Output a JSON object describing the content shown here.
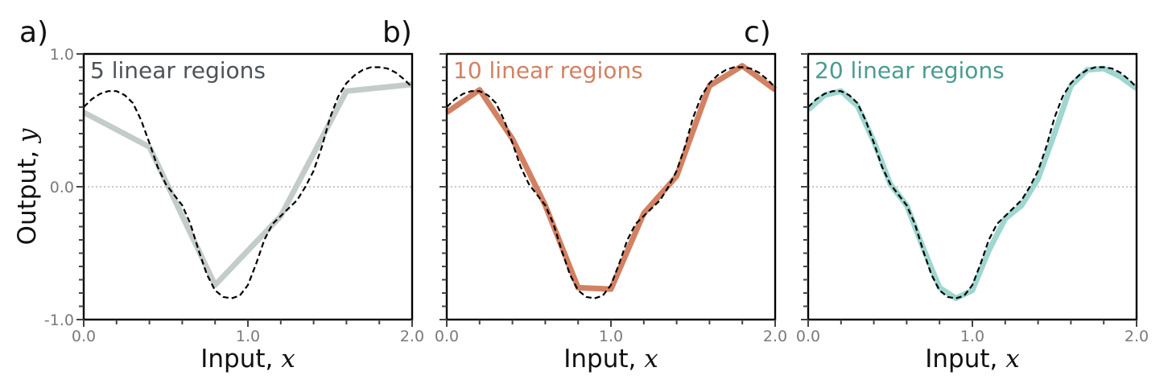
{
  "chart_data": [
    {
      "type": "line",
      "panel_label": "a)",
      "annotation": "5 linear regions",
      "annotation_color": "#4d5358",
      "fit_color": "#c4ccca",
      "xlabel": "Input, ",
      "xlabel_var": "x",
      "ylabel": "Output, ",
      "ylabel_var": "y",
      "xlim": [
        0,
        2
      ],
      "ylim": [
        -1,
        1
      ],
      "xticks": [
        {
          "value": 0,
          "label": "0.0"
        },
        {
          "value": 1,
          "label": "1.0"
        },
        {
          "value": 2,
          "label": "2.0"
        }
      ],
      "yticks": [
        {
          "value": 1,
          "label": "1.0"
        },
        {
          "value": 0,
          "label": "0.0"
        },
        {
          "value": -1,
          "label": "-1.0"
        }
      ],
      "fit": {
        "x": [
          0,
          0.4,
          0.8,
          1.2,
          1.6,
          2.0
        ],
        "y": [
          0.56,
          0.3,
          -0.74,
          -0.22,
          0.72,
          0.77
        ]
      }
    },
    {
      "type": "line",
      "panel_label": "b)",
      "annotation": "10 linear regions",
      "annotation_color": "#d28163",
      "fit_color": "#d28163",
      "xlabel": "Input, ",
      "xlabel_var": "x",
      "xlim": [
        0,
        2
      ],
      "ylim": [
        -1,
        1
      ],
      "xticks": [
        {
          "value": 0,
          "label": "0.0"
        },
        {
          "value": 1,
          "label": "1.0"
        },
        {
          "value": 2,
          "label": "2.0"
        }
      ],
      "yticks": [
        {
          "value": 1,
          "label": ""
        },
        {
          "value": 0,
          "label": ""
        },
        {
          "value": -1,
          "label": ""
        }
      ],
      "fit": {
        "x": [
          0,
          0.2,
          0.4,
          0.6,
          0.8,
          1.0,
          1.2,
          1.4,
          1.6,
          1.8,
          2.0
        ],
        "y": [
          0.56,
          0.73,
          0.36,
          -0.14,
          -0.76,
          -0.77,
          -0.2,
          0.08,
          0.76,
          0.91,
          0.73
        ]
      }
    },
    {
      "type": "line",
      "panel_label": "c)",
      "annotation": "20 linear regions",
      "annotation_color": "#4a9b92",
      "fit_color": "#9fd6d0",
      "xlabel": "Input, ",
      "xlabel_var": "x",
      "xlim": [
        0,
        2
      ],
      "ylim": [
        -1,
        1
      ],
      "xticks": [
        {
          "value": 0,
          "label": "0.0"
        },
        {
          "value": 1,
          "label": "1.0"
        },
        {
          "value": 2,
          "label": "2.0"
        }
      ],
      "yticks": [
        {
          "value": 1,
          "label": ""
        },
        {
          "value": 0,
          "label": ""
        },
        {
          "value": -1,
          "label": ""
        }
      ],
      "fit": {
        "x": [
          0,
          0.1,
          0.2,
          0.3,
          0.4,
          0.5,
          0.6,
          0.7,
          0.8,
          0.9,
          1.0,
          1.1,
          1.2,
          1.3,
          1.4,
          1.5,
          1.6,
          1.7,
          1.8,
          1.9,
          2.0
        ],
        "y": [
          0.58,
          0.69,
          0.72,
          0.61,
          0.34,
          0.02,
          -0.14,
          -0.46,
          -0.76,
          -0.84,
          -0.78,
          -0.48,
          -0.24,
          -0.14,
          0.06,
          0.4,
          0.76,
          0.88,
          0.89,
          0.83,
          0.74
        ]
      }
    }
  ],
  "true_function": {
    "x": [
      0,
      0.05,
      0.1,
      0.15,
      0.2,
      0.25,
      0.3,
      0.35,
      0.4,
      0.45,
      0.5,
      0.55,
      0.6,
      0.65,
      0.7,
      0.75,
      0.8,
      0.85,
      0.9,
      0.95,
      1.0,
      1.05,
      1.1,
      1.15,
      1.2,
      1.25,
      1.3,
      1.35,
      1.4,
      1.45,
      1.5,
      1.55,
      1.6,
      1.65,
      1.7,
      1.75,
      1.8,
      1.85,
      1.9,
      1.95,
      2.0
    ],
    "y": [
      0.6,
      0.66,
      0.7,
      0.72,
      0.72,
      0.69,
      0.63,
      0.5,
      0.33,
      0.15,
      0.02,
      -0.06,
      -0.14,
      -0.28,
      -0.48,
      -0.66,
      -0.78,
      -0.83,
      -0.84,
      -0.82,
      -0.74,
      -0.58,
      -0.4,
      -0.28,
      -0.22,
      -0.16,
      -0.1,
      0.0,
      0.12,
      0.3,
      0.52,
      0.68,
      0.78,
      0.84,
      0.88,
      0.9,
      0.9,
      0.89,
      0.86,
      0.81,
      0.75
    ]
  },
  "zero_line": 0
}
